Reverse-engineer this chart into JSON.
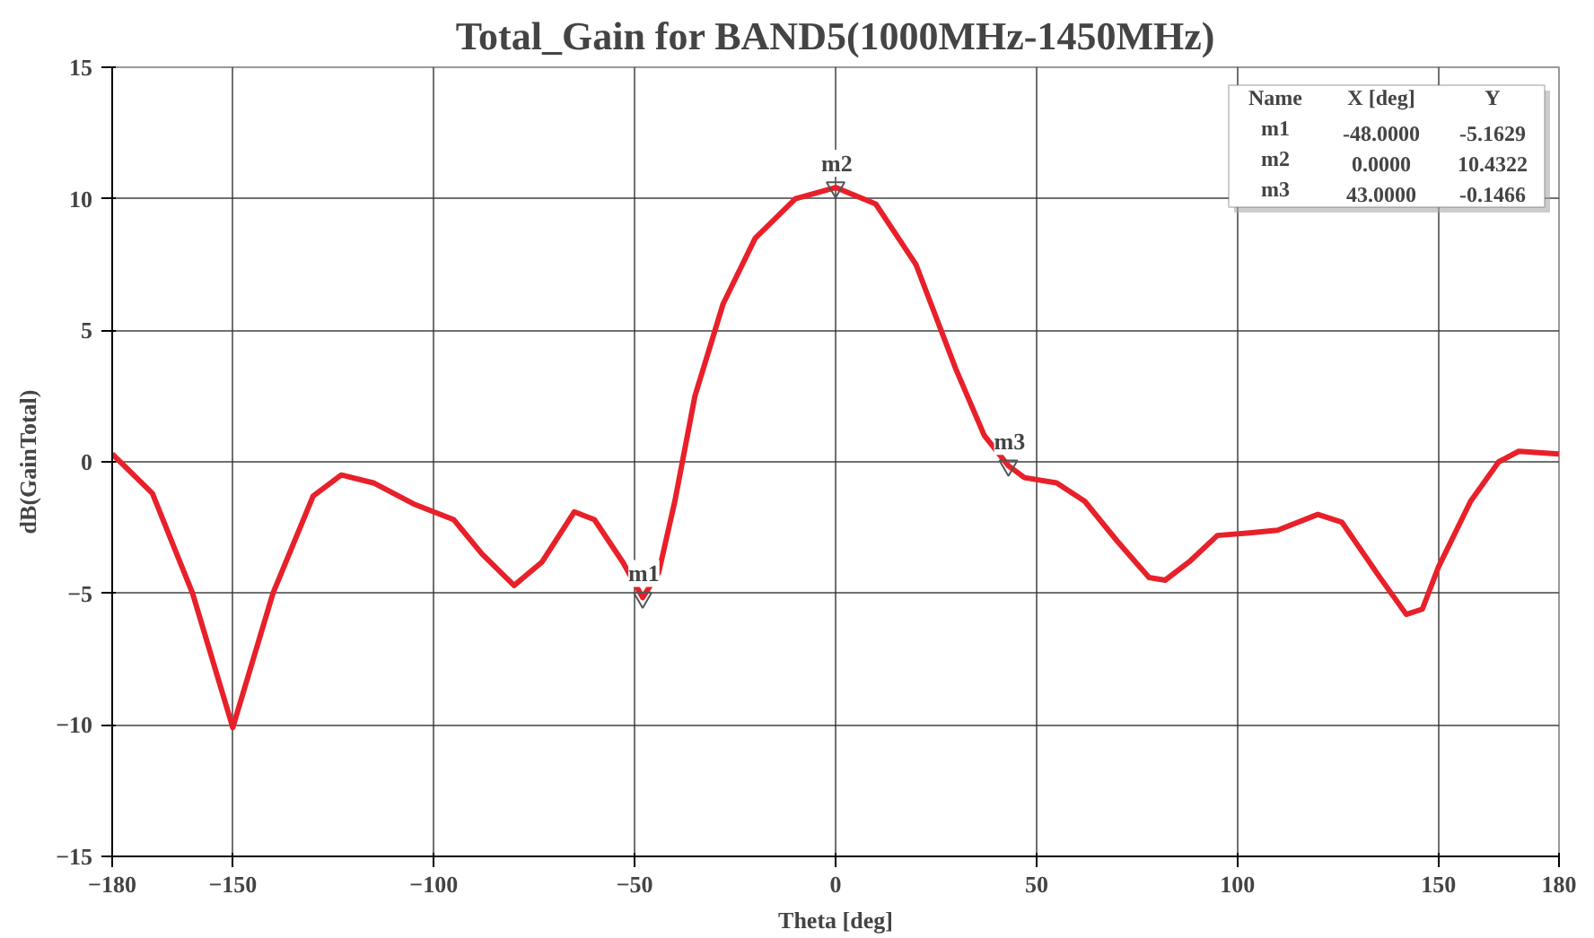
{
  "chart_data": {
    "type": "line",
    "title": "Total_Gain for BAND5(1000MHz-1450MHz)",
    "xlabel": "Theta [deg]",
    "ylabel": "dB(GainTotal)",
    "x": [
      -180,
      -170,
      -160,
      -150,
      -140,
      -130,
      -123,
      -115,
      -105,
      -95,
      -88,
      -80,
      -73,
      -65,
      -60,
      -53,
      -48,
      -44,
      -40,
      -35,
      -28,
      -20,
      -10,
      0,
      10,
      20,
      30,
      37,
      43,
      47,
      55,
      62,
      70,
      78,
      82,
      88,
      95,
      103,
      110,
      120,
      126,
      135,
      142,
      146,
      150,
      158,
      165,
      170,
      180
    ],
    "series": [
      {
        "color": "#e8202a",
        "values": [
          0.3,
          -1.2,
          -5,
          -10.1,
          -5,
          -1.3,
          -0.5,
          -0.8,
          -1.6,
          -2.2,
          -3.5,
          -4.7,
          -3.8,
          -1.9,
          -2.2,
          -3.8,
          -5.16,
          -4.2,
          -1.5,
          2.5,
          6,
          8.5,
          10,
          10.43,
          9.8,
          7.5,
          3.5,
          1,
          -0.15,
          -0.6,
          -0.8,
          -1.5,
          -3,
          -4.4,
          -4.5,
          -3.8,
          -2.8,
          -2.7,
          -2.6,
          -2,
          -2.3,
          -4.3,
          -5.8,
          -5.6,
          -4,
          -1.5,
          0,
          0.4,
          0.3
        ]
      }
    ],
    "xlim": [
      -180,
      180
    ],
    "ylim": [
      -15,
      15
    ],
    "xticks": [
      -180,
      -150,
      -100,
      -50,
      0,
      50,
      100,
      150,
      180
    ],
    "yticks": [
      -15,
      -10,
      -5,
      0,
      5,
      10,
      15
    ],
    "grid": true,
    "marker": "none",
    "line_style": "solid",
    "annotations": [
      {
        "text": "m1",
        "x": -48,
        "y": -5.1629
      },
      {
        "text": "m2",
        "x": 0,
        "y": 10.4322
      },
      {
        "text": "m3",
        "x": 43,
        "y": -0.1466
      },
      "Name",
      "X [deg]",
      "Y",
      "m1",
      "-48.0000",
      "-5.1629",
      "m2",
      "0.0000",
      "10.4322",
      "m3",
      "43.0000",
      "-0.1466"
    ]
  }
}
